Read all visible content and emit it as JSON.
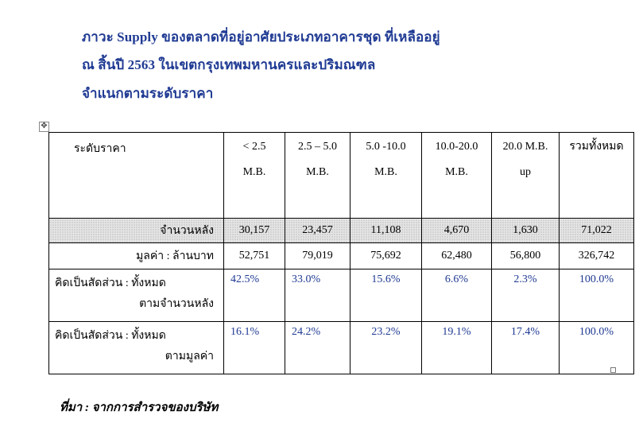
{
  "title": {
    "line1": "ภาวะ Supply  ของตลาดที่อยู่อาศัยประเภทอาคารชุด ที่เหลืออยู่",
    "line2": "ณ สิ้นปี 2563   ในเขตกรุงเทพมหานครและปริมณฑล",
    "line3": "จำแนกตามระดับราคา"
  },
  "table": {
    "header": {
      "label": "ระดับราคา",
      "cols": [
        {
          "l1": "< 2.5",
          "l2": "M.B."
        },
        {
          "l1": "2.5 – 5.0",
          "l2": "M.B."
        },
        {
          "l1": "5.0 -10.0",
          "l2": "M.B."
        },
        {
          "l1": "10.0-20.0",
          "l2": "M.B."
        },
        {
          "l1": "20.0 M.B.",
          "l2": "up"
        },
        {
          "l1": "รวมทั้งหมด",
          "l2": ""
        }
      ]
    },
    "units": {
      "label": "จำนวนหลัง",
      "values": [
        "30,157",
        "23,457",
        "11,108",
        "4,670",
        "1,630",
        "71,022"
      ]
    },
    "value": {
      "label": "มูลค่า : ล้านบาท",
      "values": [
        "52,751",
        "79,019",
        "75,692",
        "62,480",
        "56,800",
        "326,742"
      ]
    },
    "share_units": {
      "label1": "คิดเป็นสัดส่วน : ทั้งหมด",
      "label2": "ตามจำนวนหลัง",
      "values": [
        "42.5%",
        "33.0%",
        "15.6%",
        "6.6%",
        "2.3%",
        "100.0%"
      ]
    },
    "share_value": {
      "label1": "คิดเป็นสัดส่วน : ทั้งหมด",
      "label2": "ตามมูลค่า",
      "values": [
        "16.1%",
        "24.2%",
        "23.2%",
        "19.1%",
        "17.4%",
        "100.0%"
      ]
    }
  },
  "footer": "ที่มา : จากการสำรวจของบริษัท",
  "icons": {
    "move_handle": "move-icon",
    "resize_handle": "resize-icon"
  },
  "colors": {
    "title": "#1f3a93",
    "percent": "#1f3a93"
  }
}
